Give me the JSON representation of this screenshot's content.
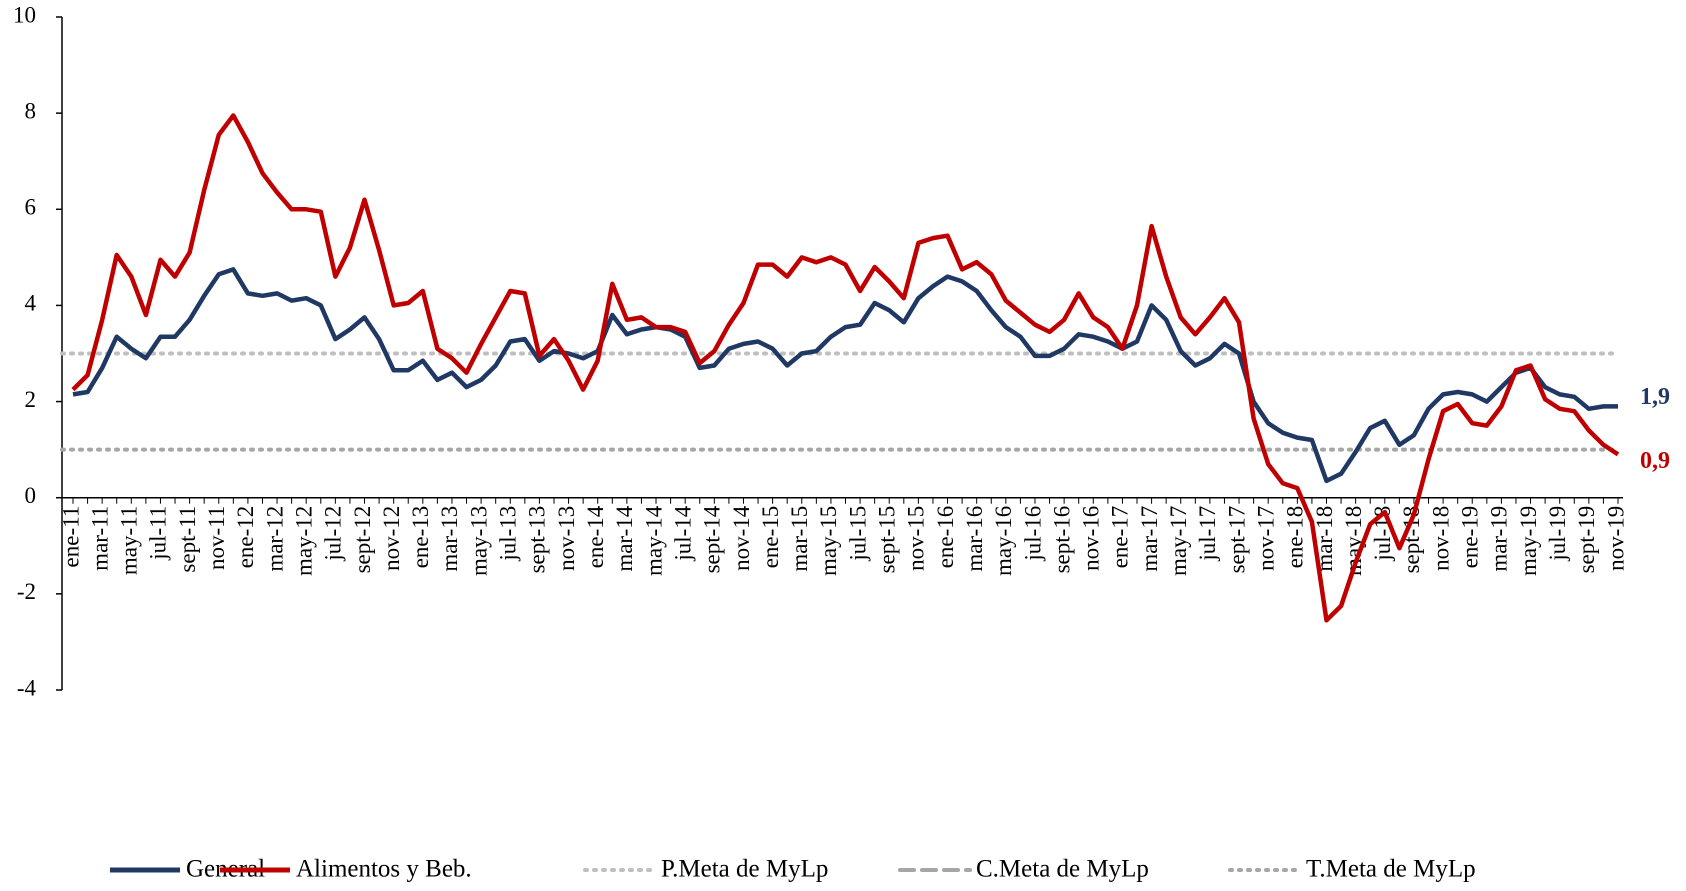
{
  "chart_data": {
    "type": "line",
    "categories": [
      "ene-11",
      null,
      "mar-11",
      null,
      "may-11",
      null,
      "jul-11",
      null,
      "sept-11",
      null,
      "nov-11",
      null,
      "ene-12",
      null,
      "mar-12",
      null,
      "may-12",
      null,
      "jul-12",
      null,
      "sept-12",
      null,
      "nov-12",
      null,
      "ene-13",
      null,
      "mar-13",
      null,
      "may-13",
      null,
      "jul-13",
      null,
      "sept-13",
      null,
      "nov-13",
      null,
      "ene-14",
      null,
      "mar-14",
      null,
      "may-14",
      null,
      "jul-14",
      null,
      "sept-14",
      null,
      "nov-14",
      null,
      "ene-15",
      null,
      "mar-15",
      null,
      "may-15",
      null,
      "jul-15",
      null,
      "sept-15",
      null,
      "nov-15",
      null,
      "ene-16",
      null,
      "mar-16",
      null,
      "may-16",
      null,
      "jul-16",
      null,
      "sept-16",
      null,
      "nov-16",
      null,
      "ene-17",
      null,
      "mar-17",
      null,
      "may-17",
      null,
      "jul-17",
      null,
      "sept-17",
      null,
      "nov-17",
      null,
      "ene-18",
      null,
      "mar-18",
      null,
      "may-18",
      null,
      "jul-18",
      null,
      "sept-18",
      null,
      "nov-18",
      null,
      "ene-19",
      null,
      "mar-19",
      null,
      "may-19",
      null,
      "jul-19",
      null,
      "sept-19",
      null,
      "nov-19"
    ],
    "series": [
      {
        "name": "General",
        "color": "#1f3864",
        "end_label": "1,9",
        "values": [
          2.15,
          2.2,
          2.7,
          3.35,
          3.1,
          2.9,
          3.35,
          3.35,
          3.7,
          4.2,
          4.65,
          4.75,
          4.25,
          4.2,
          4.25,
          4.1,
          4.15,
          4.0,
          3.3,
          3.5,
          3.75,
          3.3,
          2.65,
          2.65,
          2.85,
          2.45,
          2.6,
          2.3,
          2.45,
          2.75,
          3.25,
          3.3,
          2.85,
          3.05,
          3.0,
          2.9,
          3.05,
          3.8,
          3.4,
          3.5,
          3.55,
          3.5,
          3.35,
          2.7,
          2.75,
          3.1,
          3.2,
          3.25,
          3.1,
          2.75,
          3.0,
          3.05,
          3.35,
          3.55,
          3.6,
          4.05,
          3.9,
          3.65,
          4.15,
          4.4,
          4.6,
          4.5,
          4.3,
          3.9,
          3.55,
          3.35,
          2.95,
          2.95,
          3.1,
          3.4,
          3.35,
          3.25,
          3.1,
          3.25,
          4.0,
          3.7,
          3.05,
          2.75,
          2.9,
          3.2,
          3.0,
          2.0,
          1.55,
          1.35,
          1.25,
          1.2,
          0.35,
          0.5,
          0.95,
          1.45,
          1.6,
          1.1,
          1.3,
          1.85,
          2.15,
          2.2,
          2.15,
          2.0,
          2.3,
          2.6,
          2.7,
          2.3,
          2.15,
          2.1,
          1.85,
          1.9,
          1.9
        ]
      },
      {
        "name": "Alimentos y Beb.",
        "color": "#c00000",
        "end_label": "0,9",
        "values": [
          2.25,
          2.55,
          3.7,
          5.05,
          4.6,
          3.8,
          4.95,
          4.6,
          5.1,
          6.4,
          7.55,
          7.95,
          7.4,
          6.75,
          6.35,
          6.0,
          6.0,
          5.95,
          4.6,
          5.2,
          6.2,
          5.15,
          4.0,
          4.05,
          4.3,
          3.1,
          2.9,
          2.6,
          3.2,
          3.75,
          4.3,
          4.25,
          2.95,
          3.3,
          2.85,
          2.25,
          2.85,
          4.45,
          3.7,
          3.75,
          3.55,
          3.55,
          3.45,
          2.8,
          3.05,
          3.6,
          4.05,
          4.85,
          4.85,
          4.6,
          5.0,
          4.9,
          5.0,
          4.85,
          4.3,
          4.8,
          4.5,
          4.15,
          5.3,
          5.4,
          5.45,
          4.75,
          4.9,
          4.65,
          4.1,
          3.85,
          3.6,
          3.45,
          3.7,
          4.25,
          3.75,
          3.55,
          3.1,
          4.0,
          5.65,
          4.6,
          3.75,
          3.4,
          3.75,
          4.15,
          3.65,
          1.65,
          0.7,
          0.3,
          0.2,
          -0.5,
          -2.55,
          -2.25,
          -1.35,
          -0.55,
          -0.3,
          -1.05,
          -0.35,
          0.8,
          1.8,
          1.95,
          1.55,
          1.5,
          1.9,
          2.65,
          2.75,
          2.05,
          1.85,
          1.8,
          1.4,
          1.1,
          0.9
        ]
      }
    ],
    "reference_lines": [
      {
        "name": "P.Meta de MyLp",
        "value": 3,
        "color": "#bfbfbf",
        "style": "dotted"
      },
      {
        "name": "C.Meta de MyLp",
        "value": null,
        "color": "#a6a6a6",
        "style": "dashed"
      },
      {
        "name": "T.Meta de MyLp",
        "value": 1,
        "color": "#a6a6a6",
        "style": "dotted"
      }
    ],
    "ylim": [
      -4,
      10
    ],
    "yticks": [
      -4,
      -2,
      0,
      2,
      4,
      6,
      8,
      10
    ],
    "grid": false,
    "legend": "bottom"
  }
}
